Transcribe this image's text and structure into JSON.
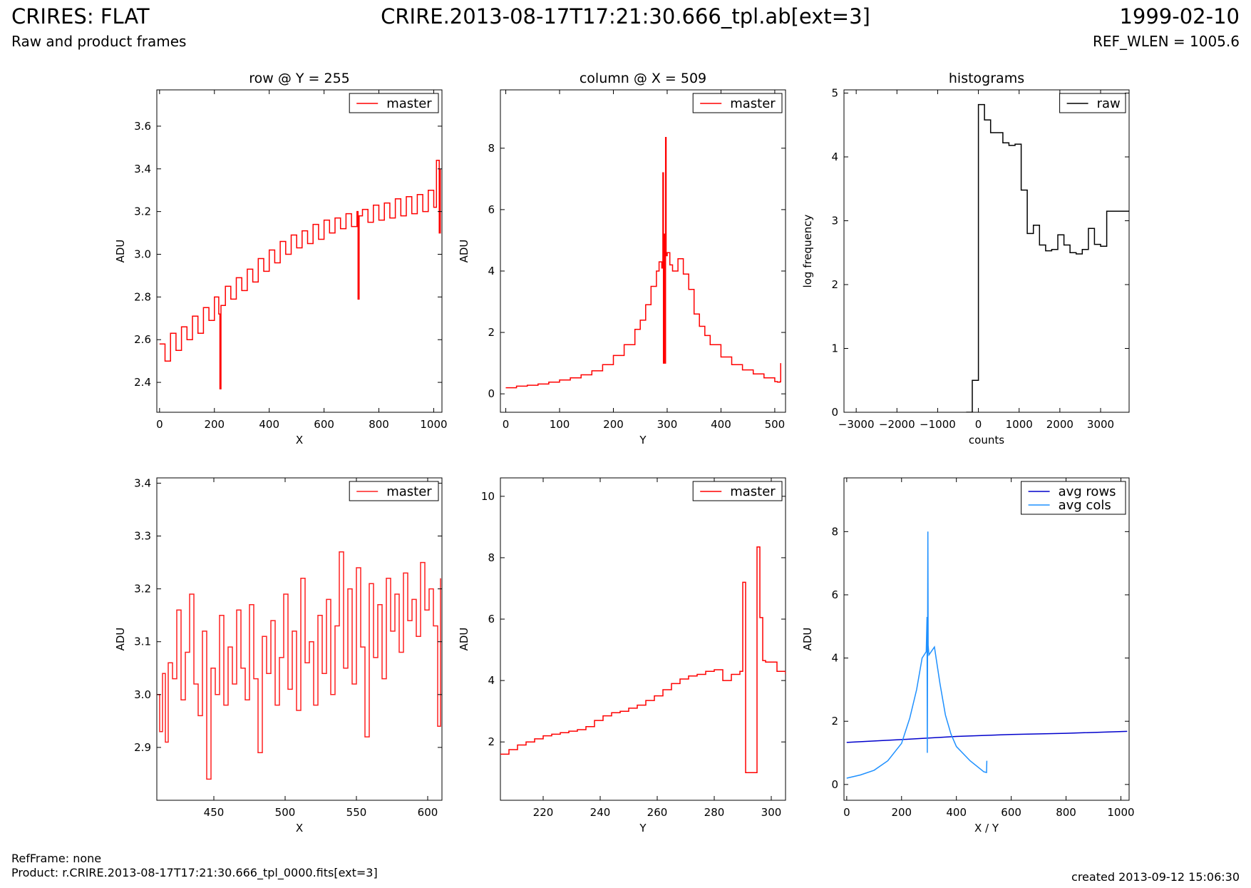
{
  "header": {
    "title": "CRIRES: FLAT",
    "subtitle": "Raw and product frames",
    "file": "CRIRE.2013-08-17T17:21:30.666_tpl.ab[ext=3]",
    "date": "1999-02-10",
    "ref_wlen": "REF_WLEN = 1005.6"
  },
  "footer": {
    "ref_frame": "RefFrame: none",
    "product": "Product: r.CRIRE.2013-08-17T17:21:30.666_tpl_0000.fits[ext=3]",
    "created": "created 2013-09-12 15:06:30"
  },
  "colors": {
    "red": "#ff0000",
    "black": "#000000",
    "blue": "#0000cc",
    "lightblue": "#1e90ff"
  },
  "chart_data": [
    {
      "id": "row",
      "type": "line",
      "title": "row @ Y = 255",
      "xlabel": "X",
      "ylabel": "ADU",
      "xlim": [
        -10,
        1030
      ],
      "ylim": [
        2.26,
        3.77
      ],
      "xticks": [
        0,
        200,
        400,
        600,
        800,
        1000
      ],
      "yticks": [
        2.4,
        2.6,
        2.8,
        3.0,
        3.2,
        3.4,
        3.6
      ],
      "ytick_decimals": 1,
      "legend": {
        "position": "top-right",
        "entries": [
          "master"
        ]
      },
      "series": [
        {
          "name": "master",
          "color": "#ff0000",
          "step": true,
          "x": [
            0,
            20,
            40,
            60,
            80,
            100,
            120,
            140,
            160,
            180,
            200,
            216,
            220,
            224,
            240,
            260,
            280,
            300,
            320,
            340,
            360,
            380,
            400,
            420,
            440,
            460,
            480,
            500,
            520,
            540,
            560,
            580,
            600,
            620,
            640,
            660,
            680,
            700,
            720,
            724,
            728,
            740,
            760,
            780,
            800,
            820,
            840,
            860,
            880,
            900,
            920,
            940,
            960,
            980,
            1000,
            1010,
            1020,
            1024
          ],
          "y": [
            2.58,
            2.5,
            2.63,
            2.55,
            2.66,
            2.6,
            2.71,
            2.63,
            2.75,
            2.69,
            2.8,
            2.72,
            2.37,
            2.76,
            2.85,
            2.79,
            2.89,
            2.83,
            2.93,
            2.87,
            2.98,
            2.92,
            3.02,
            2.96,
            3.06,
            3.0,
            3.09,
            3.03,
            3.11,
            3.05,
            3.14,
            3.07,
            3.16,
            3.1,
            3.17,
            3.12,
            3.19,
            3.13,
            3.2,
            2.79,
            3.18,
            3.21,
            3.15,
            3.23,
            3.16,
            3.24,
            3.17,
            3.26,
            3.18,
            3.27,
            3.19,
            3.28,
            3.2,
            3.3,
            3.22,
            3.44,
            3.1,
            3.4
          ]
        }
      ]
    },
    {
      "id": "column",
      "type": "line",
      "title": "column @ X = 509",
      "xlabel": "Y",
      "ylabel": "ADU",
      "xlim": [
        -10,
        520
      ],
      "ylim": [
        -0.6,
        9.9
      ],
      "xticks": [
        0,
        100,
        200,
        300,
        400,
        500
      ],
      "yticks": [
        0,
        2,
        4,
        6,
        8
      ],
      "ytick_decimals": 0,
      "legend": {
        "position": "top-right",
        "entries": [
          "master"
        ]
      },
      "series": [
        {
          "name": "master",
          "color": "#ff0000",
          "step": true,
          "x": [
            0,
            20,
            40,
            60,
            80,
            100,
            120,
            140,
            160,
            180,
            200,
            220,
            240,
            250,
            260,
            270,
            280,
            285,
            290,
            292,
            293,
            294,
            295,
            297,
            298,
            300,
            305,
            310,
            320,
            330,
            340,
            350,
            360,
            370,
            380,
            400,
            420,
            440,
            460,
            480,
            500,
            505,
            510,
            511
          ],
          "y": [
            0.2,
            0.25,
            0.28,
            0.32,
            0.38,
            0.45,
            0.52,
            0.62,
            0.75,
            0.95,
            1.25,
            1.6,
            2.1,
            2.4,
            2.9,
            3.5,
            4.0,
            4.3,
            4.1,
            7.2,
            1.0,
            5.2,
            1.0,
            8.35,
            4.5,
            4.6,
            4.2,
            4.0,
            4.4,
            3.9,
            3.4,
            2.6,
            2.2,
            1.9,
            1.6,
            1.2,
            0.95,
            0.78,
            0.65,
            0.52,
            0.4,
            0.38,
            0.4,
            1.0
          ]
        }
      ]
    },
    {
      "id": "hist",
      "type": "line",
      "title": "histograms",
      "xlabel": "counts",
      "ylabel": "log frequency",
      "xlim": [
        -3300,
        3700
      ],
      "ylim": [
        0,
        5.05
      ],
      "xticks": [
        -3000,
        -2000,
        -1000,
        0,
        1000,
        2000,
        3000
      ],
      "yticks": [
        0,
        1,
        2,
        3,
        4,
        5
      ],
      "ytick_decimals": 0,
      "tick_minus": "−",
      "legend": {
        "position": "top-right",
        "entries": [
          "raw"
        ]
      },
      "series": [
        {
          "name": "raw",
          "color": "#000000",
          "step": true,
          "x": [
            -300,
            -150,
            0,
            150,
            300,
            600,
            750,
            900,
            1050,
            1200,
            1350,
            1500,
            1650,
            1800,
            1950,
            2100,
            2250,
            2400,
            2550,
            2700,
            2850,
            3000,
            3150,
            3300,
            3450,
            3600,
            3700
          ],
          "y": [
            0.0,
            0.5,
            4.82,
            4.58,
            4.38,
            4.22,
            4.18,
            4.2,
            3.48,
            2.8,
            2.93,
            2.62,
            2.53,
            2.55,
            2.78,
            2.62,
            2.5,
            2.48,
            2.55,
            2.88,
            2.63,
            2.6,
            3.15,
            3.15,
            3.15,
            3.15,
            3.15
          ]
        }
      ]
    },
    {
      "id": "row-zoom",
      "type": "line",
      "title": "",
      "xlabel": "X",
      "ylabel": "ADU",
      "xlim": [
        410,
        610
      ],
      "ylim": [
        2.8,
        3.41
      ],
      "xticks": [
        450,
        500,
        550,
        600
      ],
      "yticks": [
        2.9,
        3.0,
        3.1,
        3.2,
        3.3,
        3.4
      ],
      "ytick_decimals": 1,
      "legend": {
        "position": "top-right",
        "entries": [
          "master"
        ]
      },
      "series": [
        {
          "name": "master",
          "color": "#ff2020",
          "step": true,
          "x": [
            410,
            412,
            414,
            416,
            418,
            421,
            424,
            427,
            430,
            433,
            436,
            439,
            442,
            445,
            448,
            451,
            454,
            457,
            460,
            463,
            466,
            469,
            472,
            475,
            478,
            481,
            484,
            487,
            490,
            493,
            496,
            499,
            502,
            505,
            508,
            511,
            514,
            517,
            520,
            523,
            526,
            529,
            532,
            535,
            538,
            541,
            544,
            547,
            550,
            553,
            556,
            559,
            562,
            565,
            568,
            571,
            574,
            577,
            580,
            583,
            586,
            589,
            592,
            595,
            598,
            601,
            604,
            607,
            609
          ],
          "y": [
            3.0,
            2.93,
            3.04,
            2.91,
            3.06,
            3.03,
            3.16,
            2.99,
            3.08,
            3.19,
            3.02,
            2.96,
            3.12,
            2.84,
            3.05,
            3.0,
            3.15,
            2.98,
            3.09,
            3.02,
            3.16,
            3.05,
            2.99,
            3.17,
            3.03,
            2.89,
            3.11,
            3.04,
            3.14,
            2.98,
            3.07,
            3.19,
            3.01,
            3.12,
            2.97,
            3.22,
            3.06,
            3.1,
            2.98,
            3.15,
            3.04,
            3.18,
            3.0,
            3.13,
            3.27,
            3.05,
            3.2,
            3.02,
            3.24,
            3.09,
            2.92,
            3.21,
            3.07,
            3.17,
            3.03,
            3.22,
            3.12,
            3.19,
            3.08,
            3.23,
            3.14,
            3.18,
            3.11,
            3.25,
            3.16,
            3.2,
            3.13,
            2.94,
            3.22
          ]
        }
      ]
    },
    {
      "id": "column-zoom",
      "type": "line",
      "title": "",
      "xlabel": "Y",
      "ylabel": "ADU",
      "xlim": [
        205,
        305
      ],
      "ylim": [
        0.1,
        10.6
      ],
      "xticks": [
        220,
        240,
        260,
        280,
        300
      ],
      "yticks": [
        2,
        4,
        6,
        8,
        10
      ],
      "ytick_decimals": 0,
      "legend": {
        "position": "top-right",
        "entries": [
          "master"
        ]
      },
      "series": [
        {
          "name": "master",
          "color": "#ff0000",
          "step": true,
          "x": [
            205,
            208,
            211,
            214,
            217,
            220,
            223,
            226,
            229,
            232,
            235,
            238,
            241,
            244,
            247,
            250,
            253,
            256,
            259,
            262,
            265,
            268,
            271,
            274,
            277,
            280,
            283,
            286,
            289,
            290,
            291,
            295,
            296,
            297,
            298,
            302,
            305
          ],
          "y": [
            1.6,
            1.75,
            1.9,
            2.0,
            2.1,
            2.2,
            2.25,
            2.3,
            2.35,
            2.4,
            2.5,
            2.7,
            2.85,
            2.95,
            3.0,
            3.1,
            3.2,
            3.35,
            3.5,
            3.7,
            3.9,
            4.05,
            4.15,
            4.2,
            4.3,
            4.35,
            4.0,
            4.2,
            4.3,
            7.2,
            1.0,
            8.35,
            6.05,
            4.65,
            4.6,
            4.3,
            4.2
          ]
        }
      ]
    },
    {
      "id": "averages",
      "type": "line",
      "title": "",
      "xlabel": "X / Y",
      "ylabel": "ADU",
      "xlim": [
        -10,
        1030
      ],
      "ylim": [
        -0.5,
        9.7
      ],
      "xticks": [
        0,
        200,
        400,
        600,
        800,
        1000
      ],
      "yticks": [
        0,
        2,
        4,
        6,
        8
      ],
      "ytick_decimals": 0,
      "legend": {
        "position": "top-right",
        "entries": [
          "avg rows",
          "avg cols"
        ]
      },
      "series": [
        {
          "name": "avg rows",
          "color": "#0000cc",
          "step": false,
          "x": [
            0,
            200,
            400,
            600,
            800,
            1023
          ],
          "y": [
            1.33,
            1.42,
            1.52,
            1.58,
            1.62,
            1.68
          ]
        },
        {
          "name": "avg cols",
          "color": "#1e90ff",
          "step": false,
          "x": [
            0,
            50,
            100,
            150,
            200,
            230,
            255,
            275,
            290,
            293,
            294,
            296,
            297,
            300,
            320,
            340,
            360,
            380,
            400,
            450,
            500,
            510,
            511
          ],
          "y": [
            0.2,
            0.3,
            0.45,
            0.75,
            1.3,
            2.1,
            3.0,
            4.0,
            4.2,
            5.3,
            1.0,
            8.0,
            4.4,
            4.1,
            4.35,
            3.2,
            2.2,
            1.6,
            1.2,
            0.75,
            0.4,
            0.38,
            0.75
          ]
        }
      ]
    }
  ]
}
